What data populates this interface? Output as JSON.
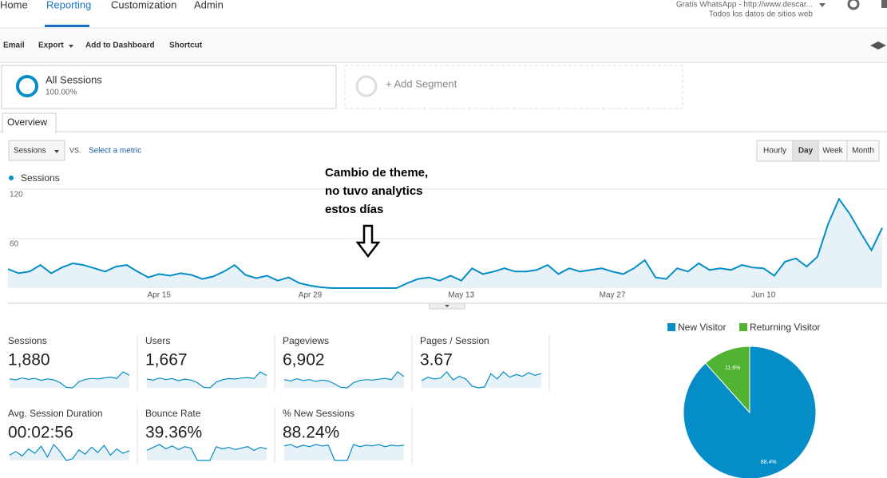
{
  "nav": {
    "items": [
      "Home",
      "Reporting",
      "Customization",
      "Admin"
    ],
    "property": "Gratis WhatsApp - http://www.descar...",
    "view": "Todos los datos de sitios web"
  },
  "toolbar": {
    "items": [
      "Email",
      "Export",
      "Add to Dashboard",
      "Shortcut"
    ]
  },
  "segments": {
    "active": "All Sessions",
    "active_share": "100.00%",
    "add": "+ Add Segment"
  },
  "tab": "Overview",
  "controls": {
    "metric": "Sessions",
    "vs": "VS.",
    "select": "Select a metric",
    "periods": [
      "Hourly",
      "Day",
      "Week",
      "Month"
    ]
  },
  "annotation": [
    "Cambio de theme,",
    "no tuvo analytics",
    "estos días"
  ],
  "chart_data": [
    {
      "type": "line",
      "categories": [
        null,
        null,
        null,
        null,
        null,
        null,
        null,
        null,
        null,
        null,
        null,
        null,
        null,
        null,
        "Apr 15",
        null,
        null,
        null,
        null,
        null,
        null,
        null,
        null,
        null,
        null,
        null,
        null,
        null,
        "Apr 29",
        null,
        null,
        null,
        null,
        null,
        null,
        null,
        null,
        null,
        null,
        null,
        null,
        null,
        "May 13",
        null,
        null,
        null,
        null,
        null,
        null,
        null,
        null,
        null,
        null,
        null,
        null,
        null,
        "May 27",
        null,
        null,
        null,
        null,
        null,
        null,
        null,
        null,
        null,
        null,
        null,
        null,
        null,
        "Jun 10",
        null,
        null,
        null,
        null,
        null,
        null,
        null,
        null,
        null,
        null,
        null
      ],
      "series": [
        {
          "name": "Sessions",
          "color": "#058dc7",
          "values": [
            23,
            18,
            20,
            28,
            18,
            25,
            30,
            28,
            24,
            20,
            26,
            28,
            20,
            13,
            17,
            15,
            18,
            16,
            11,
            14,
            20,
            28,
            16,
            12,
            15,
            9,
            13,
            6,
            3,
            1,
            0,
            0,
            0,
            0,
            0,
            0,
            0,
            6,
            11,
            13,
            9,
            15,
            9,
            24,
            17,
            20,
            24,
            20,
            20,
            22,
            28,
            17,
            24,
            20,
            22,
            24,
            20,
            17,
            24,
            34,
            13,
            11,
            24,
            20,
            30,
            22,
            24,
            22,
            28,
            25,
            24,
            15,
            32,
            36,
            26,
            38,
            78,
            108,
            90,
            67,
            46,
            73
          ]
        }
      ],
      "ylim": [
        0,
        120
      ],
      "yticks": [
        60,
        120
      ],
      "grid": true
    },
    {
      "type": "pie",
      "categories": [
        "New Visitor",
        "Returning Visitor"
      ],
      "values": [
        88.4,
        11.6
      ],
      "value_labels": [
        "88.4%",
        "11.6%"
      ],
      "colors": [
        "#058dc7",
        "#50b432"
      ]
    }
  ],
  "metrics": [
    {
      "label": "Sessions",
      "value": "1,880",
      "spark": [
        20,
        18,
        22,
        19,
        21,
        17,
        20,
        18,
        12,
        2,
        1,
        14,
        19,
        21,
        20,
        22,
        24,
        21,
        35,
        28
      ]
    },
    {
      "label": "Users",
      "value": "1,667",
      "spark": [
        18,
        16,
        20,
        17,
        19,
        15,
        18,
        16,
        11,
        2,
        1,
        12,
        17,
        19,
        18,
        20,
        21,
        19,
        32,
        25
      ]
    },
    {
      "label": "Pageviews",
      "value": "6,902",
      "spark": [
        20,
        17,
        22,
        18,
        20,
        16,
        19,
        17,
        10,
        2,
        1,
        13,
        18,
        20,
        19,
        21,
        23,
        20,
        38,
        27
      ]
    },
    {
      "label": "Pages / Session",
      "value": "3.67",
      "spark": [
        20,
        24,
        22,
        23,
        30,
        21,
        25,
        22,
        14,
        12,
        13,
        28,
        22,
        30,
        24,
        27,
        25,
        29,
        26,
        28
      ]
    },
    {
      "label": "Avg. Session Duration",
      "value": "00:02:56",
      "spark": [
        18,
        22,
        17,
        25,
        20,
        28,
        16,
        30,
        22,
        12,
        14,
        24,
        19,
        27,
        21,
        29,
        18,
        25,
        20,
        23
      ]
    },
    {
      "label": "Bounce Rate",
      "value": "39.36%",
      "spark": [
        22,
        26,
        30,
        24,
        28,
        23,
        27,
        25,
        8,
        8,
        8,
        27,
        24,
        26,
        23,
        25,
        27,
        22,
        26,
        24
      ]
    },
    {
      "label": "% New Sessions",
      "value": "88.24%",
      "spark": [
        28,
        30,
        26,
        29,
        27,
        30,
        28,
        29,
        8,
        8,
        8,
        30,
        27,
        29,
        28,
        30,
        27,
        29,
        28,
        29
      ]
    }
  ]
}
